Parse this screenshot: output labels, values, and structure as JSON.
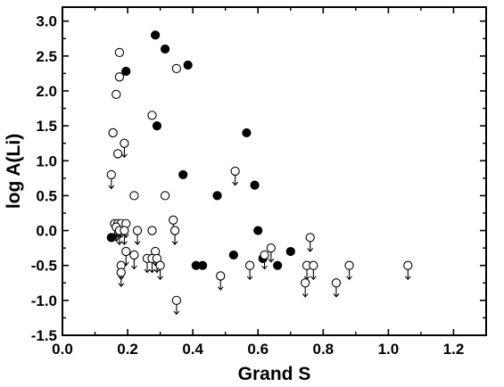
{
  "chart_data": {
    "type": "scatter",
    "title": "",
    "xlabel": "Grand S",
    "ylabel": "log A(Li)",
    "xlim": [
      0.0,
      1.3
    ],
    "ylim": [
      -1.5,
      3.2
    ],
    "xticks": [
      0.0,
      0.2,
      0.4,
      0.6,
      0.8,
      1.0,
      1.2
    ],
    "xtick_labels": [
      "0.0",
      "0.2",
      "0.4",
      "0.6",
      "0.8",
      "1.0",
      "1.2"
    ],
    "yticks": [
      -1.5,
      -1.0,
      -0.5,
      0.0,
      0.5,
      1.0,
      1.5,
      2.0,
      2.5,
      3.0
    ],
    "ytick_labels": [
      "-1.5",
      "-1.0",
      "-0.5",
      "0.0",
      "0.5",
      "1.0",
      "1.5",
      "2.0",
      "2.5",
      "3.0"
    ],
    "grid": false,
    "legend": "none",
    "series": [
      {
        "marker": "filled-circle",
        "color": "#000000",
        "points": [
          {
            "x": 0.285,
            "y": 2.8
          },
          {
            "x": 0.315,
            "y": 2.6
          },
          {
            "x": 0.195,
            "y": 2.28
          },
          {
            "x": 0.385,
            "y": 2.37
          },
          {
            "x": 0.29,
            "y": 1.5
          },
          {
            "x": 0.565,
            "y": 1.4
          },
          {
            "x": 0.37,
            "y": 0.8
          },
          {
            "x": 0.59,
            "y": 0.65
          },
          {
            "x": 0.475,
            "y": 0.5
          },
          {
            "x": 0.6,
            "y": 0.0
          },
          {
            "x": 0.15,
            "y": -0.1
          },
          {
            "x": 0.525,
            "y": -0.35
          },
          {
            "x": 0.615,
            "y": -0.4
          },
          {
            "x": 0.7,
            "y": -0.3
          },
          {
            "x": 0.41,
            "y": -0.5
          },
          {
            "x": 0.43,
            "y": -0.5
          },
          {
            "x": 0.66,
            "y": -0.5
          }
        ]
      },
      {
        "marker": "open-circle",
        "color": "#000000",
        "points": [
          {
            "x": 0.175,
            "y": 2.55
          },
          {
            "x": 0.175,
            "y": 2.2
          },
          {
            "x": 0.35,
            "y": 2.32
          },
          {
            "x": 0.165,
            "y": 1.95
          },
          {
            "x": 0.275,
            "y": 1.65
          },
          {
            "x": 0.155,
            "y": 1.4
          },
          {
            "x": 0.17,
            "y": 1.1
          },
          {
            "x": 0.22,
            "y": 0.5
          },
          {
            "x": 0.315,
            "y": 0.5
          },
          {
            "x": 0.275,
            "y": 0.0
          }
        ]
      },
      {
        "marker": "open-circle-upper-limit",
        "color": "#000000",
        "points": [
          {
            "x": 0.19,
            "y": 1.25
          },
          {
            "x": 0.15,
            "y": 0.8
          },
          {
            "x": 0.53,
            "y": 0.85
          },
          {
            "x": 0.34,
            "y": 0.15
          },
          {
            "x": 0.16,
            "y": 0.1
          },
          {
            "x": 0.17,
            "y": 0.1
          },
          {
            "x": 0.18,
            "y": 0.1
          },
          {
            "x": 0.195,
            "y": 0.1
          },
          {
            "x": 0.165,
            "y": 0.05
          },
          {
            "x": 0.175,
            "y": 0.0
          },
          {
            "x": 0.19,
            "y": 0.0
          },
          {
            "x": 0.23,
            "y": 0.0
          },
          {
            "x": 0.345,
            "y": 0.0
          },
          {
            "x": 0.76,
            "y": -0.1
          },
          {
            "x": 0.195,
            "y": -0.3
          },
          {
            "x": 0.22,
            "y": -0.35
          },
          {
            "x": 0.285,
            "y": -0.3
          },
          {
            "x": 0.64,
            "y": -0.25
          },
          {
            "x": 0.26,
            "y": -0.4
          },
          {
            "x": 0.275,
            "y": -0.4
          },
          {
            "x": 0.29,
            "y": -0.4
          },
          {
            "x": 0.62,
            "y": -0.35
          },
          {
            "x": 0.18,
            "y": -0.5
          },
          {
            "x": 0.3,
            "y": -0.5
          },
          {
            "x": 0.575,
            "y": -0.5
          },
          {
            "x": 0.75,
            "y": -0.5
          },
          {
            "x": 0.77,
            "y": -0.5
          },
          {
            "x": 0.88,
            "y": -0.5
          },
          {
            "x": 1.06,
            "y": -0.5
          },
          {
            "x": 0.18,
            "y": -0.6
          },
          {
            "x": 0.485,
            "y": -0.65
          },
          {
            "x": 0.745,
            "y": -0.75
          },
          {
            "x": 0.84,
            "y": -0.75
          },
          {
            "x": 0.35,
            "y": -1.0
          }
        ]
      }
    ]
  }
}
